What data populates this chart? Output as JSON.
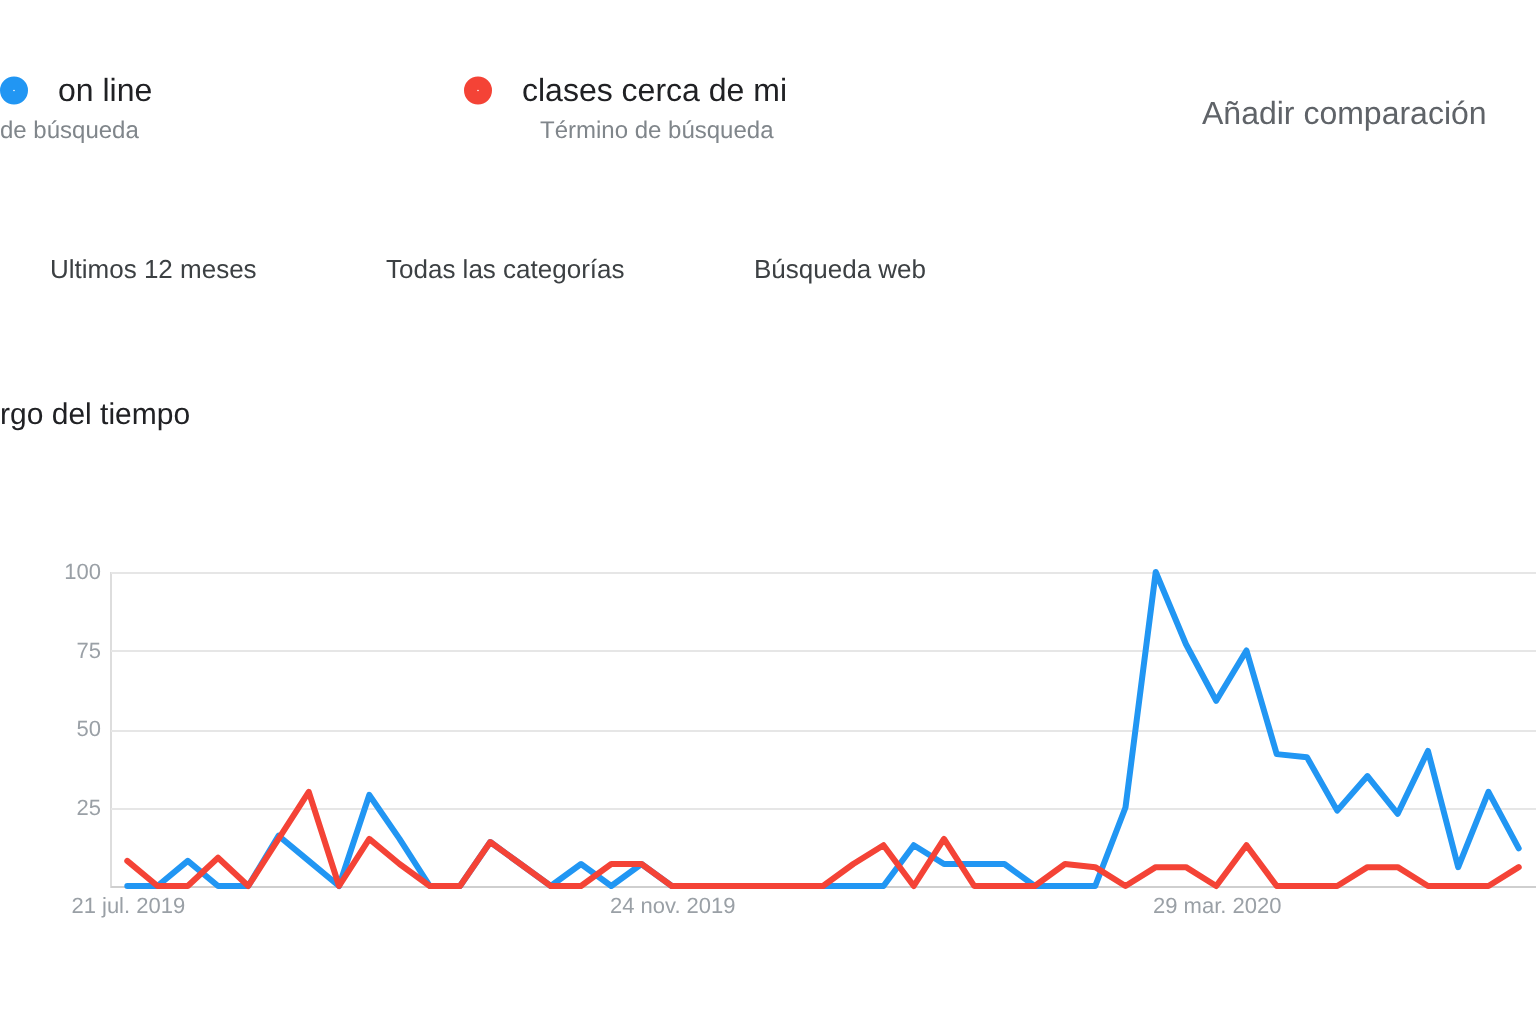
{
  "chart_data": {
    "type": "line",
    "title": "rgo del tiempo",
    "annotations": [
      "de búsqueda",
      "Término de búsqueda",
      "Añadir comparación",
      "Ultimos 12 meses",
      "Todas las categorías",
      "Búsqueda web"
    ],
    "x": [
      "2019-07-21",
      "2019-07-28",
      "2019-08-04",
      "2019-08-11",
      "2019-08-18",
      "2019-08-25",
      "2019-09-01",
      "2019-09-08",
      "2019-09-15",
      "2019-09-22",
      "2019-09-29",
      "2019-10-06",
      "2019-10-13",
      "2019-10-20",
      "2019-10-27",
      "2019-11-03",
      "2019-11-10",
      "2019-11-17",
      "2019-11-24",
      "2019-12-01",
      "2019-12-08",
      "2019-12-15",
      "2019-12-22",
      "2019-12-29",
      "2020-01-05",
      "2020-01-12",
      "2020-01-19",
      "2020-01-26",
      "2020-02-02",
      "2020-02-09",
      "2020-02-16",
      "2020-02-23",
      "2020-03-01",
      "2020-03-08",
      "2020-03-15",
      "2020-03-22",
      "2020-03-29",
      "2020-04-05",
      "2020-04-12",
      "2020-04-19",
      "2020-04-26",
      "2020-05-03",
      "2020-05-10",
      "2020-05-17",
      "2020-05-24",
      "2020-05-31",
      "2020-06-07"
    ],
    "xlim": [
      "2019-07-17",
      "2020-06-11"
    ],
    "xticks": [
      {
        "value": "2019-07-21",
        "label": "21 jul. 2019"
      },
      {
        "value": "2019-11-24",
        "label": "24 nov. 2019"
      },
      {
        "value": "2020-03-29",
        "label": "29 mar. 2020"
      }
    ],
    "ylim": [
      0,
      100
    ],
    "yticks": [
      {
        "value": 0,
        "label": null
      },
      25,
      50,
      75,
      100
    ],
    "grid": "y",
    "legend": "top left",
    "series": [
      {
        "name": "on line",
        "color": "#2196f3",
        "values": [
          0,
          0,
          8,
          0,
          0,
          16,
          8,
          0,
          29,
          15,
          0,
          0,
          14,
          7,
          0,
          7,
          0,
          7,
          0,
          0,
          0,
          0,
          0,
          0,
          0,
          0,
          13,
          7,
          7,
          7,
          0,
          0,
          0,
          25,
          100,
          77,
          59,
          75,
          42,
          41,
          24,
          35,
          23,
          43,
          6,
          30,
          12
        ]
      },
      {
        "name": "clases cerca de mi",
        "color": "#f44336",
        "values": [
          8,
          0,
          0,
          9,
          0,
          15,
          30,
          0,
          15,
          7,
          0,
          0,
          14,
          7,
          0,
          0,
          7,
          7,
          0,
          0,
          0,
          0,
          0,
          0,
          7,
          13,
          0,
          15,
          0,
          0,
          0,
          7,
          6,
          0,
          6,
          6,
          0,
          13,
          0,
          0,
          0,
          6,
          6,
          0,
          0,
          0,
          6
        ]
      }
    ]
  }
}
